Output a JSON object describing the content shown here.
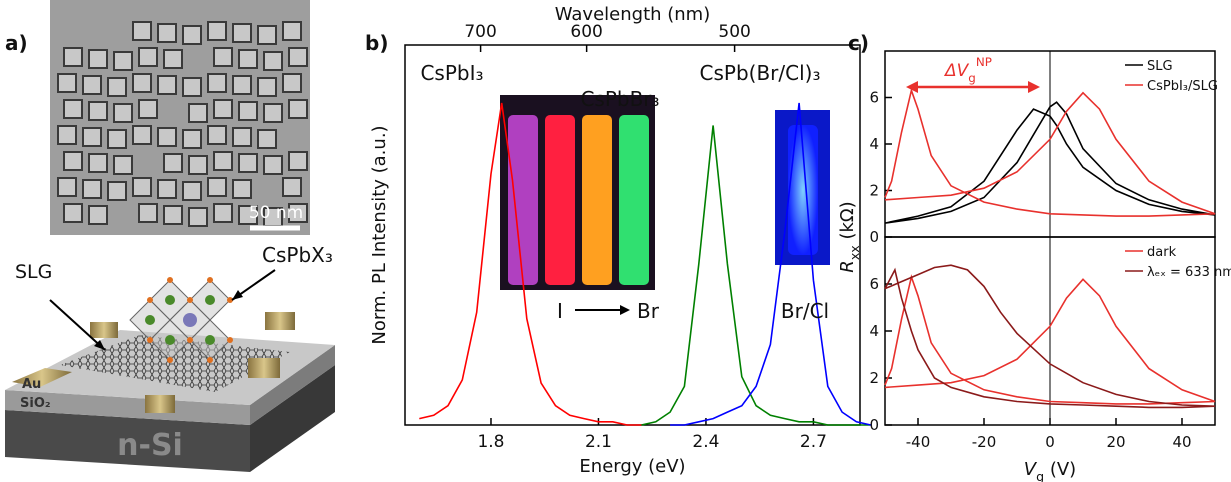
{
  "panel_labels": [
    "a)",
    "b)",
    "c)"
  ],
  "panel_a": {
    "scale_bar": "50 nm",
    "labels": [
      "CsPbX₃",
      "SLG",
      "Au",
      "SiO₂",
      "n-Si"
    ]
  },
  "chart_data": [
    {
      "type": "line",
      "xlabel": "Energy (eV)",
      "ylabel": "Norm. PL Intensity (a.u.)",
      "x2label": "Wavelength (nm)",
      "x": [
        1.6,
        1.64,
        1.68,
        1.72,
        1.76,
        1.8,
        1.83,
        1.86,
        1.9,
        1.94,
        1.98,
        2.02,
        2.06,
        2.1,
        2.14,
        2.18,
        2.22,
        2.26,
        2.3,
        2.34,
        2.38,
        2.42,
        2.46,
        2.5,
        2.54,
        2.58,
        2.62,
        2.66,
        2.7,
        2.74,
        2.78,
        2.82,
        2.86
      ],
      "xlim": [
        1.56,
        2.83
      ],
      "xticks": [
        1.8,
        2.1,
        2.4,
        2.7
      ],
      "x2ticks": [
        {
          "value": 1.771,
          "label": "700"
        },
        {
          "value": 2.067,
          "label": "600"
        },
        {
          "value": 2.48,
          "label": "500"
        }
      ],
      "ylim": [
        0,
        1.18
      ],
      "series": [
        {
          "name": "CsPbI₃",
          "color": "#ff0000",
          "values": [
            0.02,
            0.03,
            0.06,
            0.14,
            0.35,
            0.78,
            1.0,
            0.76,
            0.33,
            0.13,
            0.06,
            0.03,
            0.02,
            0.01,
            0.01,
            0,
            0,
            null,
            null,
            null,
            null,
            null,
            null,
            null,
            null,
            null,
            null,
            null,
            null,
            null,
            null,
            null,
            null
          ]
        },
        {
          "name": "CsPbBr₃",
          "color": "#008000",
          "values": [
            null,
            null,
            null,
            null,
            null,
            null,
            null,
            null,
            null,
            null,
            null,
            null,
            null,
            null,
            null,
            null,
            0,
            0.01,
            0.04,
            0.12,
            0.5,
            0.93,
            0.5,
            0.15,
            0.06,
            0.03,
            0.02,
            0.01,
            0.01,
            0,
            0,
            0,
            0
          ]
        },
        {
          "name": "CsPb(Br/Cl)₃",
          "color": "#0000ff",
          "values": [
            null,
            null,
            null,
            null,
            null,
            null,
            null,
            null,
            null,
            null,
            null,
            null,
            null,
            null,
            null,
            null,
            null,
            null,
            0,
            0,
            0.01,
            0.02,
            0.04,
            0.06,
            0.12,
            0.25,
            0.6,
            1.0,
            0.45,
            0.12,
            0.04,
            0.01,
            0
          ]
        }
      ],
      "inset_labels": [
        "I",
        "Br",
        "Br/Cl"
      ]
    },
    {
      "type": "line",
      "ylabel": [
        "R",
        "xx",
        " (kΩ)"
      ],
      "xlim": [
        -50,
        50
      ],
      "ylim": [
        0,
        8
      ],
      "yticks": [
        0,
        2,
        4,
        6
      ],
      "vline": 0,
      "annotation": [
        "ΔV",
        "g",
        "NP"
      ],
      "legend": "upper right",
      "series": [
        {
          "name": "SLG",
          "color": "#000000",
          "x": [
            -50,
            -40,
            -30,
            -20,
            -10,
            -5,
            0,
            2,
            5,
            10,
            20,
            30,
            40,
            50,
            40,
            30,
            20,
            10,
            5,
            2,
            0,
            -5,
            -10,
            -20,
            -30,
            -40,
            -50
          ],
          "values": [
            0.6,
            0.8,
            1.1,
            1.7,
            3.2,
            4.4,
            5.6,
            5.8,
            5.3,
            3.8,
            2.3,
            1.6,
            1.2,
            0.95,
            1.1,
            1.4,
            2.0,
            3.0,
            4.0,
            4.8,
            5.2,
            5.5,
            4.6,
            2.4,
            1.3,
            0.9,
            0.6
          ]
        },
        {
          "name": "CsPbI₃/SLG",
          "color": "#e8312d",
          "x": [
            -50,
            -40,
            -30,
            -20,
            -10,
            0,
            5,
            10,
            15,
            20,
            30,
            40,
            50,
            40,
            30,
            20,
            10,
            0,
            -10,
            -20,
            -30,
            -36,
            -40,
            -42,
            -45,
            -48,
            -50
          ],
          "values": [
            1.6,
            1.7,
            1.8,
            2.1,
            2.8,
            4.2,
            5.4,
            6.2,
            5.5,
            4.2,
            2.4,
            1.5,
            1.0,
            0.95,
            0.9,
            0.9,
            0.95,
            1.0,
            1.2,
            1.5,
            2.2,
            3.5,
            5.5,
            6.3,
            4.5,
            2.4,
            1.7
          ]
        }
      ]
    },
    {
      "type": "line",
      "xlabel": [
        "V",
        "g",
        " (V)"
      ],
      "xlim": [
        -50,
        50
      ],
      "xticks": [
        -40,
        -20,
        0,
        20,
        40
      ],
      "ylim": [
        0,
        8
      ],
      "yticks": [
        0,
        2,
        4,
        6
      ],
      "vline": 0,
      "legend": "upper right",
      "series": [
        {
          "name": "dark",
          "color": "#e8312d",
          "x": [
            -50,
            -40,
            -30,
            -20,
            -10,
            0,
            5,
            10,
            15,
            20,
            30,
            40,
            50,
            40,
            30,
            20,
            10,
            0,
            -10,
            -20,
            -30,
            -36,
            -40,
            -42,
            -45,
            -48,
            -50
          ],
          "values": [
            1.6,
            1.7,
            1.8,
            2.1,
            2.8,
            4.2,
            5.4,
            6.2,
            5.5,
            4.2,
            2.4,
            1.5,
            1.0,
            0.95,
            0.9,
            0.9,
            0.95,
            1.0,
            1.2,
            1.5,
            2.2,
            3.5,
            5.5,
            6.3,
            4.5,
            2.4,
            1.7
          ]
        },
        {
          "name": "λₑₓ = 633 nm",
          "color": "#8b1a1a",
          "x": [
            -50,
            -45,
            -40,
            -35,
            -30,
            -25,
            -20,
            -15,
            -10,
            0,
            10,
            20,
            30,
            40,
            50,
            40,
            30,
            20,
            10,
            0,
            -10,
            -20,
            -30,
            -35,
            -40,
            -42,
            -45,
            -47,
            -50
          ],
          "values": [
            5.8,
            6.1,
            6.4,
            6.7,
            6.8,
            6.6,
            5.9,
            4.8,
            3.9,
            2.6,
            1.8,
            1.3,
            1.0,
            0.85,
            0.8,
            0.75,
            0.75,
            0.8,
            0.85,
            0.9,
            1.0,
            1.2,
            1.6,
            2.0,
            3.2,
            4.0,
            5.4,
            6.6,
            5.8
          ]
        }
      ]
    }
  ]
}
